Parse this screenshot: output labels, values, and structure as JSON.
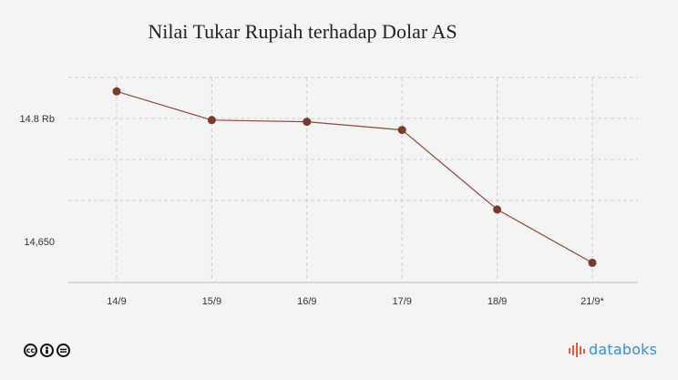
{
  "chart_data": {
    "type": "line",
    "title": "Nilai Tukar Rupiah terhadap Dolar AS",
    "xlabel": "",
    "ylabel": "",
    "categories": [
      "14/9",
      "15/9",
      "16/9",
      "17/9",
      "18/9",
      "21/9*"
    ],
    "series": [
      {
        "values": [
          14833,
          14798,
          14796,
          14786,
          14689,
          14624
        ]
      }
    ],
    "y_ticks": [
      {
        "value": 14650,
        "label": "14,650"
      },
      {
        "value": 14800,
        "label": "14.8 Rb"
      }
    ],
    "ylim": [
      14600,
      14850
    ],
    "grid": true,
    "colors": {
      "line": "#8b4a3c",
      "marker": "#7a3a2e",
      "grid": "#cfcfcf"
    }
  },
  "footer": {
    "license_icons": [
      "cc-icon",
      "by-icon",
      "nd-icon"
    ],
    "brand_name": "databoks"
  }
}
